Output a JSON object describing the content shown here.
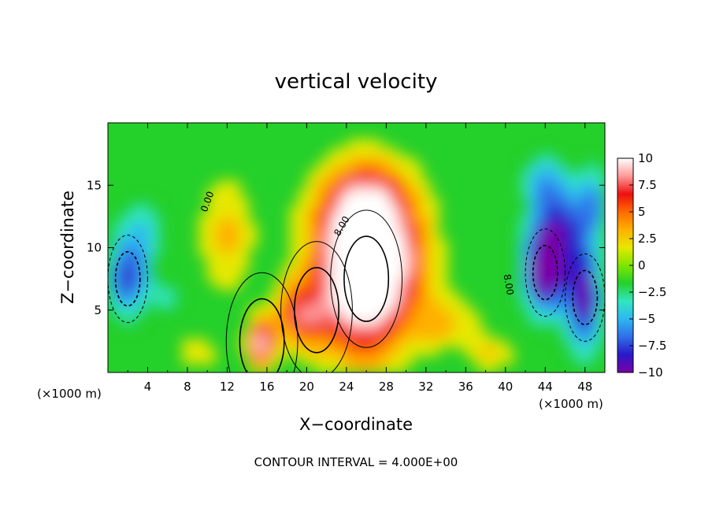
{
  "chart_data": {
    "type": "heatmap",
    "title": "vertical velocity",
    "xlabel": "X−coordinate",
    "ylabel": "Z−coordinate",
    "x_unit_left": "(×1000 m)",
    "x_unit_right": "(×1000 m)",
    "footer": "CONTOUR INTERVAL = 4.000E+00",
    "xlim": [
      0,
      50
    ],
    "ylim": [
      0,
      20
    ],
    "x_ticks": [
      4,
      8,
      12,
      16,
      20,
      24,
      28,
      32,
      36,
      40,
      44,
      48
    ],
    "x_tick_labels": [
      "4",
      "8",
      "12",
      "16",
      "20",
      "24",
      "28",
      "32",
      "36",
      "40",
      "44",
      "48"
    ],
    "y_ticks": [
      5,
      10,
      15
    ],
    "y_tick_labels": [
      "5",
      "10",
      "15"
    ],
    "colorbar": {
      "min": -10,
      "max": 10,
      "ticks": [
        10,
        7.5,
        5,
        2.5,
        0,
        -2.5,
        -5,
        -7.5,
        -10
      ],
      "tick_labels": [
        "10",
        "7.5",
        "5",
        "2.5",
        "0",
        "−2.5",
        "−5",
        "−7.5",
        "−10"
      ],
      "colors": [
        "#7a00a8",
        "#2a18c8",
        "#2f6fe8",
        "#2fb7f0",
        "#30e6c0",
        "#24d02a",
        "#7fe600",
        "#e6e800",
        "#ffb000",
        "#ff6a00",
        "#ee1010",
        "#ff9a9a",
        "#ffffff"
      ]
    },
    "contour_labels": [
      "0.00",
      "8.00",
      "8.00"
    ],
    "features": [
      {
        "kind": "updraft",
        "x": 26,
        "z": 7.5,
        "peak": 12
      },
      {
        "kind": "updraft",
        "x": 15.5,
        "z": 2.5,
        "peak": 9
      },
      {
        "kind": "updraft",
        "x": 21,
        "z": 5,
        "peak": 6
      },
      {
        "kind": "downdraft",
        "x": 44,
        "z": 8,
        "peak": -12
      },
      {
        "kind": "downdraft",
        "x": 2,
        "z": 7.5,
        "peak": -8
      },
      {
        "kind": "downdraft",
        "x": 48,
        "z": 6,
        "peak": -11
      }
    ]
  }
}
